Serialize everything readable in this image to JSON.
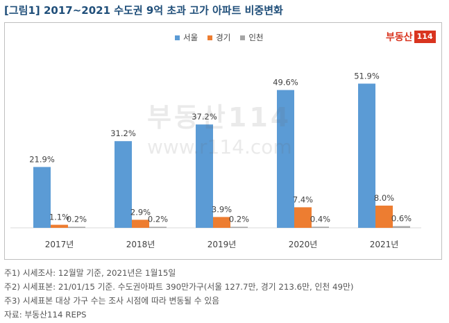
{
  "title": "[그림1] 2017~2021 수도권 9억 초과 고가 아파트 비중변화",
  "logo": {
    "brand": "부동산",
    "number": "114"
  },
  "watermark": {
    "brand": "부동산114",
    "url": "www.r114.com"
  },
  "colors": {
    "seoul": "#5b9bd5",
    "gyeonggi": "#ed7d31",
    "incheon": "#a5a5a5"
  },
  "chart_data": {
    "type": "bar",
    "title": "[그림1] 2017~2021 수도권 9억 초과 고가 아파트 비중변화",
    "categories": [
      "2017년",
      "2018년",
      "2019년",
      "2020년",
      "2021년"
    ],
    "series": [
      {
        "name": "서울",
        "values": [
          21.9,
          31.2,
          37.2,
          49.6,
          51.9
        ],
        "labels": [
          "21.9%",
          "31.2%",
          "37.2%",
          "49.6%",
          "51.9%"
        ],
        "color": "#5b9bd5"
      },
      {
        "name": "경기",
        "values": [
          1.1,
          2.9,
          3.9,
          7.4,
          8.0
        ],
        "labels": [
          "1.1%",
          "2.9%",
          "3.9%",
          "7.4%",
          "8.0%"
        ],
        "color": "#ed7d31"
      },
      {
        "name": "인천",
        "values": [
          0.2,
          0.2,
          0.2,
          0.4,
          0.6
        ],
        "labels": [
          "0.2%",
          "0.2%",
          "0.2%",
          "0.4%",
          "0.6%"
        ],
        "color": "#a5a5a5"
      }
    ],
    "legend_position": "top-center",
    "ylim": [
      0,
      60
    ],
    "grid": false,
    "xlabel": "",
    "ylabel": ""
  },
  "notes": [
    "주1) 시세조사: 12월말 기준, 2021년은 1월15일",
    "주2) 시세표본: 21/01/15 기준. 수도권아파트 390만가구(서울 127.7만, 경기 213.6만, 인천 49만)",
    "주3) 시세표본 대상 가구 수는 조사 시점에 따라 변동될 수 있음",
    "자료: 부동산114 REPS"
  ]
}
